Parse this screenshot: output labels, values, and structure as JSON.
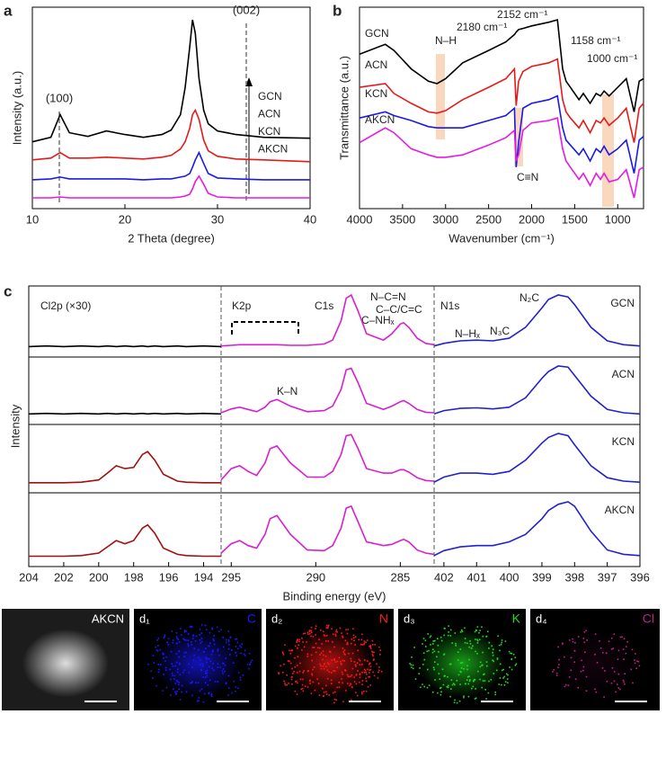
{
  "panel_labels": [
    "a",
    "b",
    "c",
    "d"
  ],
  "chart_data": [
    {
      "type": "line",
      "xlabel": "2 Theta (degree)",
      "ylabel": "Intensity (a.u.)",
      "xlim": [
        10,
        40
      ],
      "xticks": [
        10,
        20,
        30,
        40
      ],
      "x": [
        10,
        12,
        13,
        14,
        16,
        18,
        20,
        22,
        24,
        25,
        26,
        26.5,
        27,
        27.3,
        27.6,
        28,
        28.5,
        29,
        30,
        32,
        35,
        40
      ],
      "series": [
        {
          "name": "GCN",
          "color": "#000000",
          "values": [
            80,
            85,
            110,
            90,
            86,
            92,
            88,
            85,
            88,
            93,
            110,
            140,
            185,
            215,
            200,
            150,
            115,
            100,
            92,
            88,
            85,
            84
          ]
        },
        {
          "name": "ACN",
          "color": "#e41a1a",
          "values": [
            60,
            62,
            68,
            62,
            62,
            63,
            62,
            61,
            63,
            65,
            72,
            80,
            95,
            110,
            115,
            105,
            82,
            70,
            64,
            61,
            60,
            58
          ]
        },
        {
          "name": "KCN",
          "color": "#1a1ae4",
          "values": [
            38,
            39,
            41,
            39,
            39,
            39,
            39,
            38,
            39,
            39,
            41,
            42,
            45,
            52,
            60,
            68,
            56,
            45,
            40,
            39,
            38,
            38
          ]
        },
        {
          "name": "AKCN",
          "color": "#e41ae4",
          "values": [
            18,
            18,
            19,
            18,
            18,
            18,
            18,
            18,
            18,
            18,
            19,
            20,
            22,
            28,
            36,
            42,
            33,
            23,
            19,
            18,
            18,
            18
          ]
        }
      ],
      "annotations": [
        "(100)",
        "(002)"
      ]
    },
    {
      "type": "line",
      "xlabel": "Wavenumber (cm⁻¹)",
      "ylabel": "Transmittance (a.u.)",
      "xlim": [
        4000,
        700
      ],
      "xticks": [
        4000,
        3500,
        3000,
        2500,
        2000,
        1500,
        1000
      ],
      "x": [
        4000,
        3700,
        3600,
        3400,
        3200,
        3100,
        3000,
        2800,
        2500,
        2300,
        2200,
        2180,
        2152,
        2100,
        2000,
        1800,
        1700,
        1640,
        1600,
        1550,
        1450,
        1400,
        1320,
        1250,
        1200,
        1158,
        1100,
        1000,
        900,
        810,
        750,
        700
      ],
      "series": [
        {
          "name": "GCN",
          "color": "#000000",
          "values": [
            132,
            140,
            135,
            120,
            110,
            108,
            112,
            125,
            135,
            142,
            148,
            150,
            152,
            153,
            155,
            158,
            160,
            120,
            110,
            105,
            95,
            100,
            92,
            100,
            98,
            102,
            98,
            105,
            112,
            85,
            110,
            112
          ]
        },
        {
          "name": "ACN",
          "color": "#e41a1a",
          "values": [
            105,
            108,
            100,
            92,
            85,
            84,
            86,
            95,
            105,
            112,
            120,
            90,
            110,
            118,
            122,
            125,
            128,
            95,
            85,
            80,
            72,
            78,
            68,
            78,
            76,
            80,
            74,
            80,
            88,
            60,
            88,
            92
          ]
        },
        {
          "name": "KCN",
          "color": "#1a1ae4",
          "values": [
            80,
            85,
            82,
            78,
            73,
            72,
            72,
            72,
            78,
            82,
            88,
            40,
            60,
            88,
            92,
            95,
            98,
            72,
            62,
            58,
            50,
            55,
            45,
            55,
            52,
            57,
            50,
            55,
            62,
            35,
            62,
            65
          ]
        },
        {
          "name": "AKCN",
          "color": "#e41ae4",
          "values": [
            60,
            72,
            68,
            55,
            50,
            48,
            48,
            50,
            58,
            64,
            70,
            45,
            50,
            70,
            76,
            78,
            80,
            55,
            45,
            40,
            30,
            35,
            25,
            35,
            30,
            35,
            28,
            30,
            38,
            15,
            38,
            40
          ]
        }
      ],
      "annotations": [
        "N–H",
        "2180 cm⁻¹",
        "2152 cm⁻¹",
        "1158 cm⁻¹",
        "1000 cm⁻¹",
        "C≡N"
      ]
    },
    {
      "type": "line",
      "xlabel": "Binding energy (eV)",
      "ylabel": "Intensity",
      "rows": [
        "GCN",
        "ACN",
        "KCN",
        "AKCN"
      ],
      "panels": [
        {
          "xlim": [
            204,
            193
          ],
          "xticks": [
            204,
            202,
            200,
            198,
            196,
            194
          ],
          "x": [
            204,
            203,
            202,
            201,
            200,
            199.5,
            199,
            198.5,
            198,
            197.5,
            197.2,
            196.8,
            196.3,
            195.5,
            195,
            194,
            193
          ],
          "series": [
            {
              "color": "#000000",
              "values": [
                5,
                6,
                5,
                6,
                5,
                6,
                5,
                6,
                5,
                6,
                5,
                6,
                5,
                6,
                5,
                6,
                5
              ]
            },
            {
              "color": "#000000",
              "values": [
                6,
                7,
                6,
                7,
                6,
                7,
                6,
                7,
                6,
                7,
                6,
                7,
                6,
                7,
                6,
                7,
                6
              ]
            },
            {
              "color": "#a01010",
              "values": [
                5,
                5,
                5,
                6,
                10,
                22,
                35,
                30,
                32,
                55,
                60,
                45,
                20,
                8,
                6,
                5,
                5
              ]
            },
            {
              "color": "#a01010",
              "values": [
                5,
                5,
                5,
                6,
                10,
                20,
                30,
                25,
                30,
                50,
                55,
                42,
                18,
                8,
                6,
                5,
                5
              ]
            }
          ],
          "annotations": [
            "Cl2p (×30)"
          ]
        },
        {
          "xlim": [
            295.6,
            283
          ],
          "xticks": [
            295,
            290,
            285
          ],
          "x": [
            295.6,
            295,
            294.5,
            294,
            293.5,
            293,
            292.7,
            292.3,
            291.5,
            290.5,
            289.5,
            289,
            288.5,
            288.2,
            287.9,
            287.5,
            287,
            286,
            285.5,
            285,
            284.8,
            284.5,
            284,
            283.5,
            283
          ],
          "series": [
            {
              "color": "#d81fd0",
              "values": [
                6,
                7,
                8,
                8,
                8,
                8,
                8,
                8,
                7,
                7,
                9,
                15,
                45,
                80,
                85,
                60,
                25,
                15,
                25,
                40,
                42,
                35,
                18,
                10,
                8
              ]
            },
            {
              "color": "#d81fd0",
              "values": [
                8,
                15,
                18,
                14,
                10,
                18,
                28,
                32,
                20,
                10,
                12,
                20,
                50,
                85,
                88,
                62,
                25,
                14,
                20,
                28,
                30,
                25,
                14,
                9,
                8
              ]
            },
            {
              "color": "#d81fd0",
              "values": [
                10,
                30,
                35,
                25,
                18,
                40,
                65,
                70,
                40,
                15,
                15,
                25,
                55,
                88,
                90,
                65,
                30,
                22,
                22,
                28,
                28,
                24,
                14,
                9,
                8
              ]
            },
            {
              "color": "#d81fd0",
              "values": [
                10,
                25,
                30,
                22,
                18,
                40,
                65,
                70,
                40,
                15,
                14,
                22,
                50,
                82,
                85,
                60,
                28,
                22,
                24,
                30,
                32,
                28,
                15,
                10,
                8
              ]
            }
          ],
          "annotations": [
            "K2p",
            "C1s",
            "N–C=N",
            "C–C/C=C",
            "C–NHₓ",
            "K–N"
          ]
        },
        {
          "xlim": [
            402.3,
            396
          ],
          "xticks": [
            402,
            401,
            400,
            399,
            398,
            397,
            396
          ],
          "x": [
            402.3,
            402,
            401.5,
            401,
            400.5,
            400,
            399.5,
            399,
            398.8,
            398.5,
            398.2,
            398,
            397.5,
            397,
            396.5,
            396
          ],
          "series": [
            {
              "color": "#2222cc",
              "values": [
                6,
                10,
                14,
                15,
                14,
                18,
                35,
                65,
                78,
                85,
                82,
                70,
                35,
                14,
                8,
                6
              ]
            },
            {
              "color": "#2222cc",
              "values": [
                6,
                12,
                16,
                17,
                15,
                18,
                35,
                70,
                82,
                92,
                90,
                75,
                38,
                14,
                8,
                6
              ]
            },
            {
              "color": "#2222cc",
              "values": [
                6,
                15,
                22,
                22,
                20,
                25,
                45,
                75,
                85,
                92,
                88,
                72,
                35,
                14,
                8,
                6
              ]
            },
            {
              "color": "#2222cc",
              "values": [
                6,
                14,
                20,
                22,
                22,
                28,
                40,
                65,
                78,
                88,
                92,
                85,
                45,
                15,
                8,
                6
              ]
            }
          ],
          "annotations": [
            "N1s",
            "N–Hₓ",
            "N₃C",
            "N₂C"
          ]
        }
      ]
    }
  ],
  "images": {
    "tiles": [
      {
        "label": "AKCN"
      },
      {
        "label": "d₁",
        "element": "C",
        "color": "#1a1aff"
      },
      {
        "label": "d₂",
        "element": "N",
        "color": "#ff1a1a"
      },
      {
        "label": "d₃",
        "element": "K",
        "color": "#22dd22"
      },
      {
        "label": "d₄",
        "element": "Cl",
        "color": "#c0208a"
      }
    ]
  }
}
